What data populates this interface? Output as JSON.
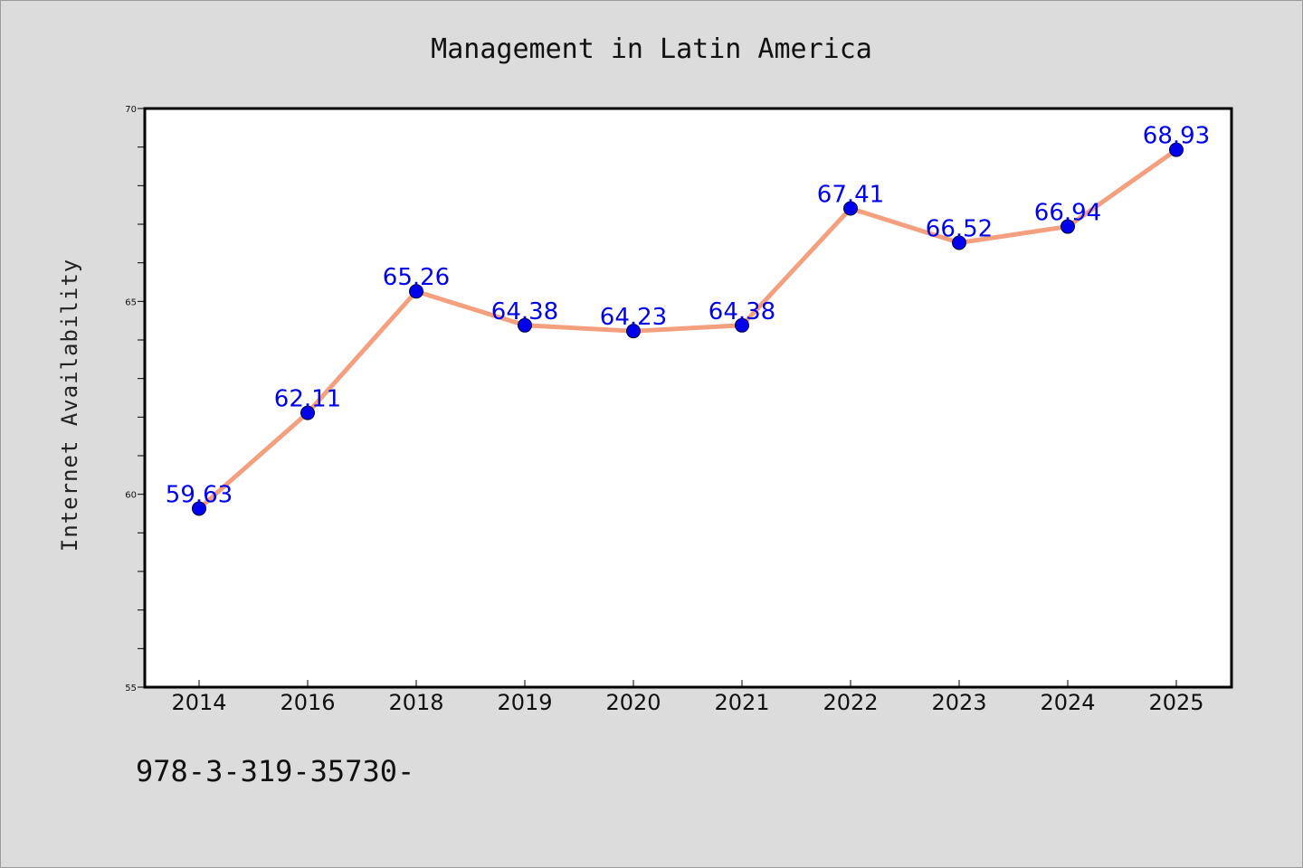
{
  "chart_data": {
    "type": "line",
    "title": "Management in Latin America",
    "xlabel": "",
    "ylabel": "Internet Availability",
    "categories": [
      "2014",
      "2016",
      "2018",
      "2019",
      "2020",
      "2021",
      "2022",
      "2023",
      "2024",
      "2025"
    ],
    "series": [
      {
        "values": [
          59.63,
          62.11,
          65.26,
          64.38,
          64.23,
          64.38,
          67.41,
          66.52,
          66.94,
          68.93
        ]
      }
    ],
    "data_labels": [
      "59.63",
      "62.11",
      "65.26",
      "64.38",
      "64.23",
      "64.38",
      "67.41",
      "66.52",
      "66.94",
      "68.93"
    ],
    "ylim": [
      55,
      70
    ],
    "yticks": [
      55,
      60,
      65,
      70
    ],
    "y_minor_step": 1,
    "grid": false,
    "legend": "none",
    "colors": {
      "line": "#f4a07f",
      "marker": "#0000ee",
      "data_label": "#0000ee",
      "background": "#dcdcdc",
      "plot_background": "#ffffff"
    }
  },
  "footnote": "978-3-319-35730-"
}
